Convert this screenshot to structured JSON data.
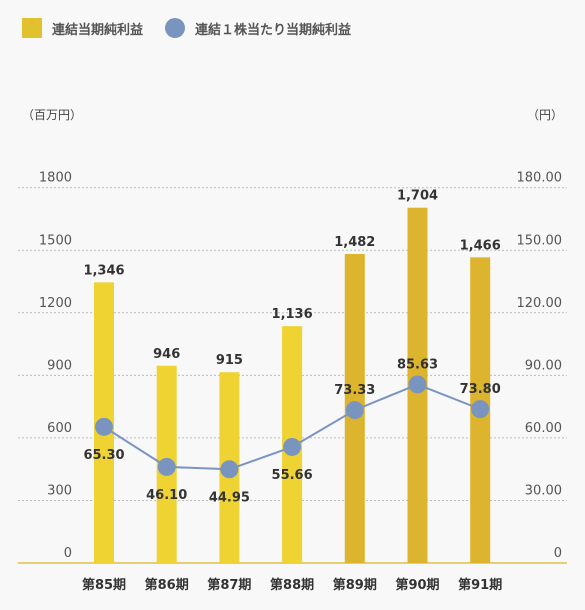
{
  "legend": {
    "bar_label": "連結当期純利益",
    "line_label": "連結１株当たり当期純利益"
  },
  "units": {
    "left": "（百万円）",
    "right": "（円）"
  },
  "colors": {
    "bar_light": "#efd332",
    "bar_dark": "#dcb42d",
    "line": "#7a94c0",
    "grid": "#bbbbbb"
  },
  "chart_data": {
    "type": "bar",
    "categories": [
      "第85期",
      "第86期",
      "第87期",
      "第88期",
      "第89期",
      "第90期",
      "第91期"
    ],
    "series": [
      {
        "name": "連結当期純利益",
        "type": "bar",
        "axis": "left",
        "values": [
          1346,
          946,
          915,
          1136,
          1482,
          1704,
          1466
        ],
        "labels": [
          "1,346",
          "946",
          "915",
          "1,136",
          "1,482",
          "1,704",
          "1,466"
        ]
      },
      {
        "name": "連結１株当たり当期純利益",
        "type": "line",
        "axis": "right",
        "values": [
          65.3,
          46.1,
          44.95,
          55.66,
          73.33,
          85.63,
          73.8
        ],
        "labels": [
          "65.30",
          "46.10",
          "44.95",
          "55.66",
          "73.33",
          "85.63",
          "73.80"
        ]
      }
    ],
    "left_axis": {
      "ticks": [
        0,
        300,
        600,
        900,
        1200,
        1500,
        1800
      ],
      "tick_labels": [
        "0",
        "300",
        "600",
        "900",
        "1200",
        "1500",
        "1800"
      ],
      "ylim": [
        0,
        2000
      ]
    },
    "right_axis": {
      "ticks": [
        0,
        30,
        60,
        90,
        120,
        150,
        180
      ],
      "tick_labels": [
        "0",
        "30.00",
        "60.00",
        "90.00",
        "120.00",
        "150.00",
        "180.00"
      ],
      "ylim": [
        0,
        200
      ]
    },
    "grid": true
  }
}
